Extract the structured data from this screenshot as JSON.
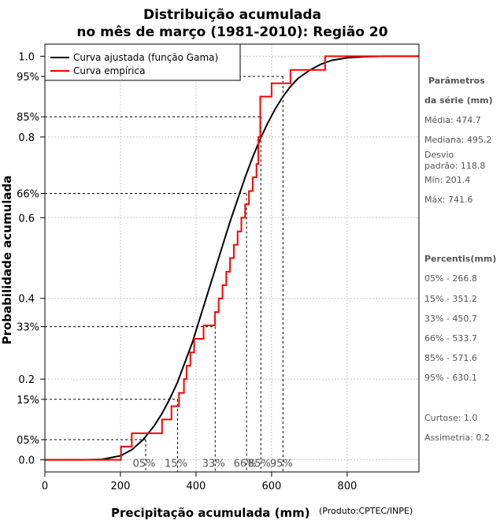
{
  "chart_data": {
    "type": "line",
    "title_line1": "Distribuição acumulada",
    "title_line2": "no mês de março (1981-2010): Região 20",
    "xlabel": "Precipitação acumulada (mm)",
    "xlabel_note": "(Produto:CPTEC/INPE)",
    "ylabel": "Probabilidade acumulada",
    "xlim": [
      0,
      990
    ],
    "ylim": [
      -0.03,
      1.03
    ],
    "x_ticks": [
      0,
      200,
      400,
      600,
      800
    ],
    "x_tick_labels": [
      "0",
      "200",
      "400",
      "600",
      "800"
    ],
    "y_ticks": [
      0.0,
      0.2,
      0.4,
      0.6,
      0.8,
      1.0
    ],
    "y_tick_labels": [
      "0.0",
      "0.2",
      "0.4",
      "0.6",
      "0.8",
      "1.0"
    ],
    "legend": {
      "position": "top-left",
      "entries": [
        {
          "label": "Curva ajustada (função Gama)",
          "color": "#000000"
        },
        {
          "label": "Curva empírica",
          "color": "#ff0000"
        }
      ]
    },
    "fitted_curve": {
      "name": "Curva ajustada (função Gama)",
      "color": "#000000",
      "x": [
        0,
        100,
        150,
        200,
        230,
        260,
        290,
        310,
        330,
        350,
        370,
        390,
        410,
        430,
        450,
        470,
        490,
        510,
        530,
        550,
        570,
        590,
        610,
        630,
        650,
        670,
        700,
        730,
        760,
        800,
        850,
        900,
        990
      ],
      "y": [
        0.0,
        0.0,
        0.001,
        0.01,
        0.025,
        0.05,
        0.085,
        0.115,
        0.15,
        0.19,
        0.24,
        0.29,
        0.35,
        0.41,
        0.47,
        0.53,
        0.59,
        0.645,
        0.7,
        0.75,
        0.795,
        0.835,
        0.87,
        0.9,
        0.925,
        0.945,
        0.965,
        0.98,
        0.99,
        0.996,
        0.999,
        1.0,
        1.0
      ]
    },
    "empirical_steps": {
      "name": "Curva empírica",
      "color": "#ff0000",
      "x": [
        0,
        201.4,
        230,
        310,
        335,
        355,
        368,
        375,
        385,
        395,
        405,
        420,
        450,
        460,
        470,
        480,
        490,
        500,
        510,
        520,
        530,
        540,
        550,
        560,
        565,
        570,
        600,
        650,
        741.6,
        990
      ],
      "y": [
        0.0,
        0.033,
        0.066,
        0.1,
        0.133,
        0.166,
        0.2,
        0.233,
        0.266,
        0.3,
        0.3,
        0.333,
        0.366,
        0.4,
        0.433,
        0.466,
        0.5,
        0.533,
        0.566,
        0.6,
        0.633,
        0.666,
        0.7,
        0.733,
        0.8,
        0.9,
        0.933,
        0.966,
        1.0,
        1.0
      ]
    },
    "percentile_guides": [
      {
        "label": "05%",
        "prob": 0.05,
        "prob_label": "05%",
        "value": 266.8
      },
      {
        "label": "15%",
        "prob": 0.15,
        "prob_label": "15%",
        "value": 351.2
      },
      {
        "label": "33%",
        "prob": 0.33,
        "prob_label": "33%",
        "value": 450.7
      },
      {
        "label": "66%",
        "prob": 0.66,
        "prob_label": "66%",
        "value": 533.7
      },
      {
        "label": "85%",
        "prob": 0.85,
        "prob_label": "85%",
        "value": 571.6
      },
      {
        "label": "95%",
        "prob": 0.95,
        "prob_label": "95%",
        "value": 630.1
      }
    ],
    "guide_y_labels_visible": [
      {
        "prob": 0.05,
        "label": "05%"
      },
      {
        "prob": 0.15,
        "label": "15%"
      },
      {
        "prob": 0.33,
        "label": "33%"
      },
      {
        "prob": 0.66,
        "label": "66%"
      },
      {
        "prob": 0.85,
        "label": "85%"
      },
      {
        "prob": 0.95,
        "label": "95%"
      }
    ],
    "guide_x_positions": [
      297,
      352,
      416,
      510,
      600,
      686
    ]
  },
  "side_panel": {
    "params_header_1": "Parâmetros",
    "params_header_2": "da série (mm)",
    "media": "Média: 474.7",
    "mediana": "Mediana: 495.2",
    "desvio_1": "Desvio",
    "desvio_2": "padrão: 118.8",
    "min": "Mín: 201.4",
    "max": "Máx: 741.6",
    "percentis_header": "Percentis(mm)",
    "p05": "05% - 266.8",
    "p15": "15% - 351.2",
    "p33": "33% - 450.7",
    "p66": "66% - 533.7",
    "p85": "85% - 571.6",
    "p95": "95% - 630.1",
    "curtose": "Curtose: 1.0",
    "assimetria": "Assimetria: 0.2"
  }
}
